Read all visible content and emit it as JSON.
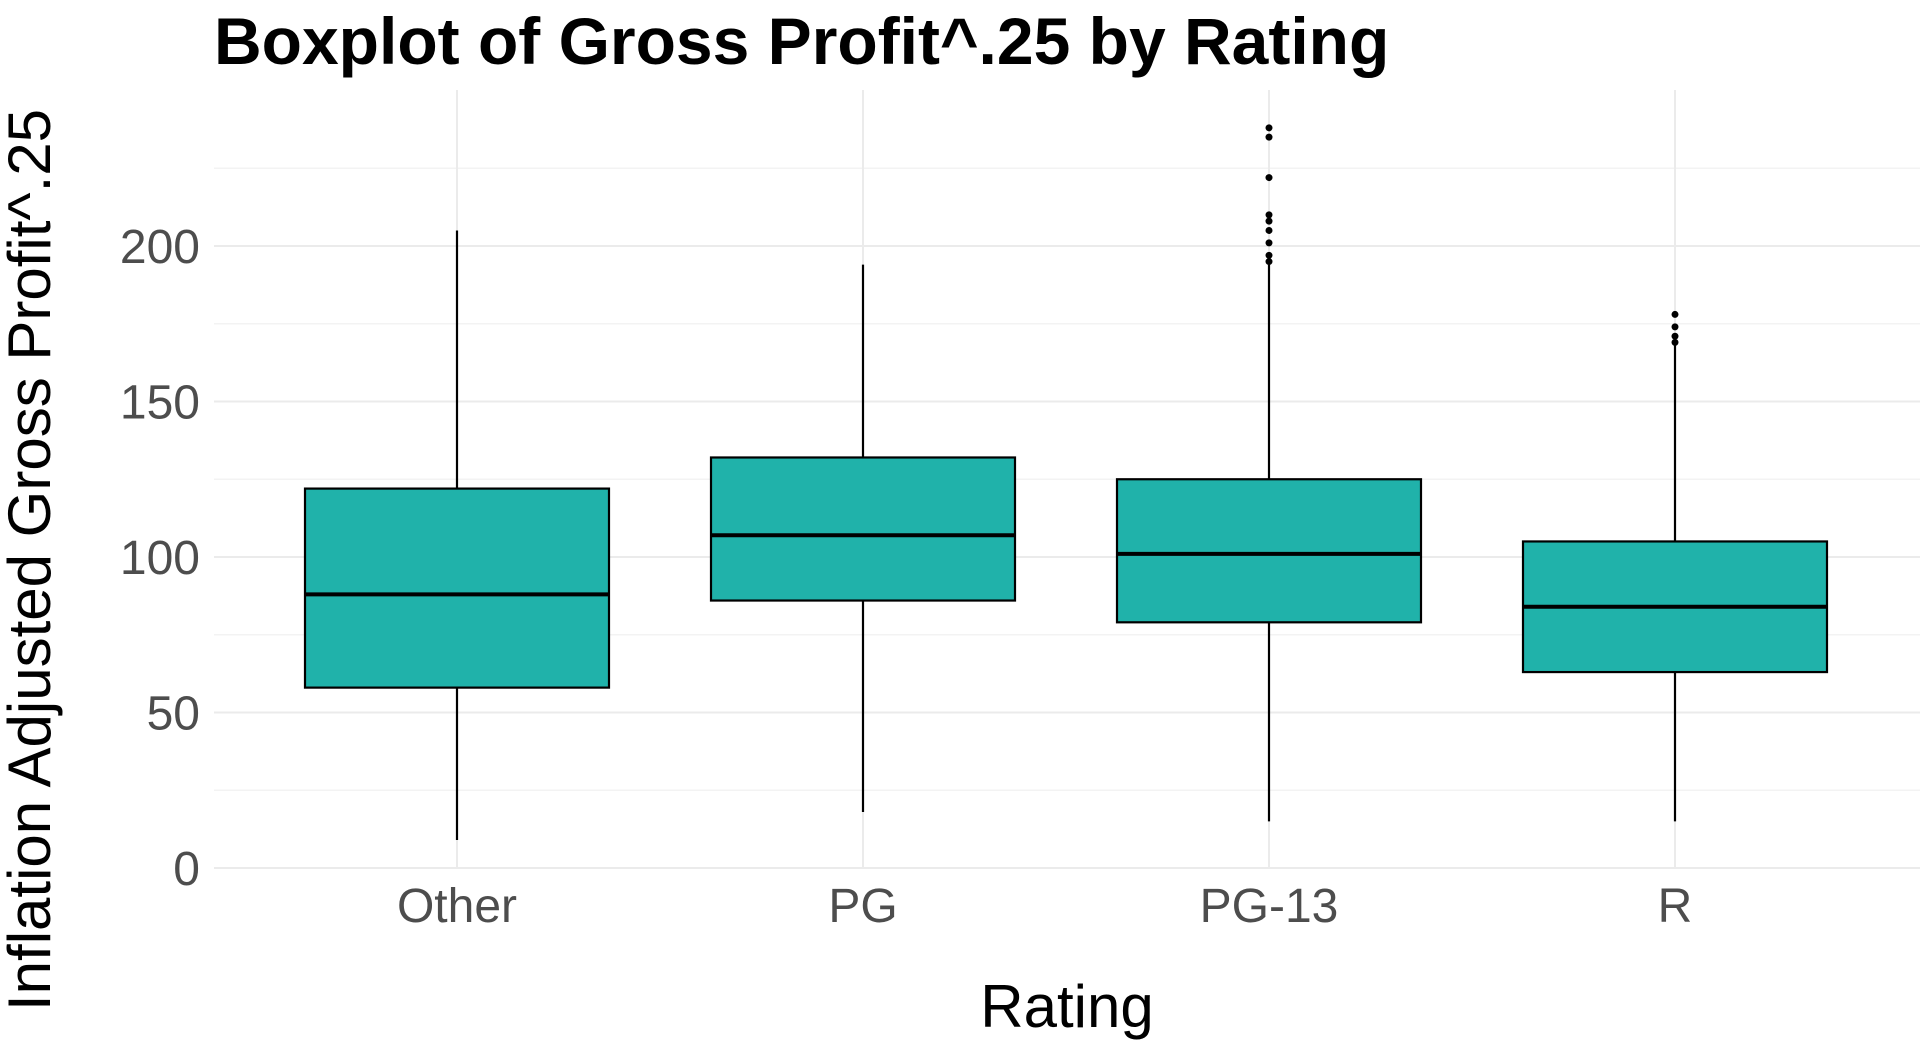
{
  "chart_data": {
    "type": "boxplot",
    "title": "Boxplot of Gross Profit^.25 by Rating",
    "xlabel": "Rating",
    "ylabel": "Inflation Adjusted Gross Profit^.25",
    "ylim": [
      0,
      240
    ],
    "yticks": [
      0,
      50,
      100,
      150,
      200
    ],
    "grid": true,
    "legend": "none",
    "fill_color": "#20B2AA",
    "categories": [
      "Other",
      "PG",
      "PG-13",
      "R"
    ],
    "boxes": [
      {
        "category": "Other",
        "whisker_low": 9,
        "q1": 58,
        "median": 88,
        "q3": 122,
        "whisker_high": 205,
        "outliers": []
      },
      {
        "category": "PG",
        "whisker_low": 18,
        "q1": 86,
        "median": 107,
        "q3": 132,
        "whisker_high": 194,
        "outliers": []
      },
      {
        "category": "PG-13",
        "whisker_low": 15,
        "q1": 79,
        "median": 101,
        "q3": 125,
        "whisker_high": 194,
        "outliers": [
          195,
          197,
          201,
          205,
          208,
          210,
          222,
          235,
          238
        ]
      },
      {
        "category": "R",
        "whisker_low": 15,
        "q1": 63,
        "median": 84,
        "q3": 105,
        "whisker_high": 168,
        "outliers": [
          169,
          171,
          174,
          178
        ]
      }
    ]
  }
}
